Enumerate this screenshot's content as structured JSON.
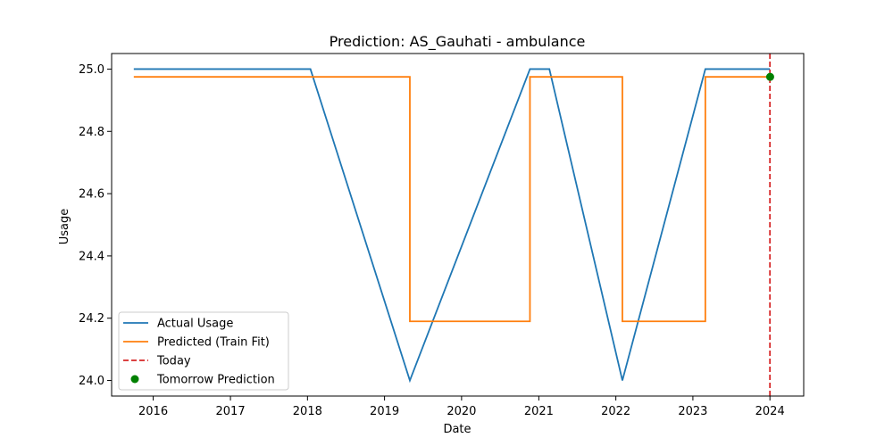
{
  "chart_data": {
    "type": "line",
    "title": "Prediction: AS_Gauhati - ambulance",
    "xlabel": "Date",
    "ylabel": "Usage",
    "x_ticks": [
      "2016",
      "2017",
      "2018",
      "2019",
      "2020",
      "2021",
      "2022",
      "2023",
      "2024"
    ],
    "y_ticks": [
      "24.0",
      "24.2",
      "24.4",
      "24.6",
      "24.8",
      "25.0"
    ],
    "xlim": [
      "2015-06-18",
      "2024-06-09"
    ],
    "ylim": [
      23.95,
      25.05
    ],
    "grid": false,
    "legend": "lower-left",
    "series": [
      {
        "name": "Actual Usage",
        "style": "solid",
        "color": "#1f77b4",
        "points": [
          [
            "2015-10-01",
            25.0
          ],
          [
            "2018-01-15",
            25.0
          ],
          [
            "2019-05-01",
            24.0
          ],
          [
            "2020-11-20",
            25.0
          ],
          [
            "2021-02-20",
            25.0
          ],
          [
            "2022-02-01",
            24.0
          ],
          [
            "2023-03-01",
            25.0
          ],
          [
            "2024-01-01",
            25.0
          ]
        ]
      },
      {
        "name": "Predicted (Train Fit)",
        "style": "step",
        "color": "#ff7f0e",
        "points": [
          [
            "2015-10-01",
            24.975
          ],
          [
            "2019-05-01",
            24.975
          ],
          [
            "2019-05-01",
            24.19
          ],
          [
            "2020-11-20",
            24.19
          ],
          [
            "2020-11-20",
            24.975
          ],
          [
            "2022-02-01",
            24.975
          ],
          [
            "2022-02-01",
            24.19
          ],
          [
            "2023-03-01",
            24.19
          ],
          [
            "2023-03-01",
            24.975
          ],
          [
            "2024-01-01",
            24.975
          ]
        ]
      },
      {
        "name": "Today",
        "style": "dashed-vertical",
        "color": "#d62728",
        "x": "2024-01-01"
      },
      {
        "name": "Tomorrow Prediction",
        "style": "point",
        "color": "#008000",
        "points": [
          [
            "2024-01-02",
            24.975
          ]
        ]
      }
    ]
  }
}
